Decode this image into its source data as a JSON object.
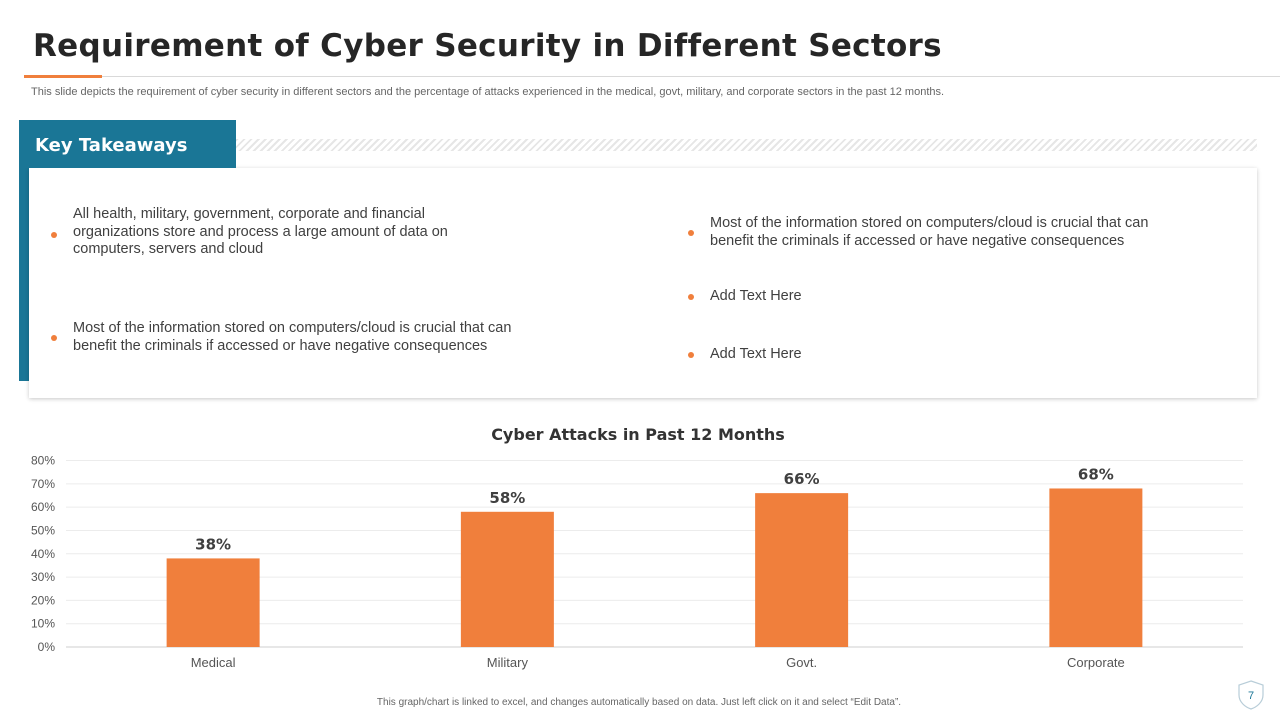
{
  "header": {
    "title": "Requirement of Cyber Security in Different Sectors",
    "subtitle": "This slide depicts the requirement of cyber security in different sectors and the percentage of attacks experienced in the medical, govt, military, and corporate sectors in the past 12 months."
  },
  "takeaways": {
    "heading": "Key Takeaways",
    "left": [
      "All health, military, government, corporate and financial organizations store and process a large amount of data on computers, servers and cloud",
      "Most of the information stored on computers/cloud is crucial that can benefit the criminals if accessed or have negative consequences"
    ],
    "right": [
      "Most of the information stored on computers/cloud is crucial that can benefit the criminals if accessed or have negative consequences",
      "Add Text Here",
      "Add Text Here"
    ]
  },
  "chart_data": {
    "type": "bar",
    "title": "Cyber Attacks in Past 12 Months",
    "categories": [
      "Medical",
      "Military",
      "Govt.",
      "Corporate"
    ],
    "values": [
      38,
      58,
      66,
      68
    ],
    "value_labels": [
      "38%",
      "58%",
      "66%",
      "68%"
    ],
    "y_ticks": [
      "0%",
      "10%",
      "20%",
      "30%",
      "40%",
      "50%",
      "60%",
      "70%",
      "80%"
    ],
    "ylim": [
      0,
      80
    ],
    "grid": true,
    "bar_color": "#f07f3c"
  },
  "footnote": "This graph/chart is linked to excel, and changes automatically based on data. Just left click on it and select “Edit Data”.",
  "page_number": "7",
  "colors": {
    "accent": "#f07f3c",
    "teal": "#1a7696"
  }
}
